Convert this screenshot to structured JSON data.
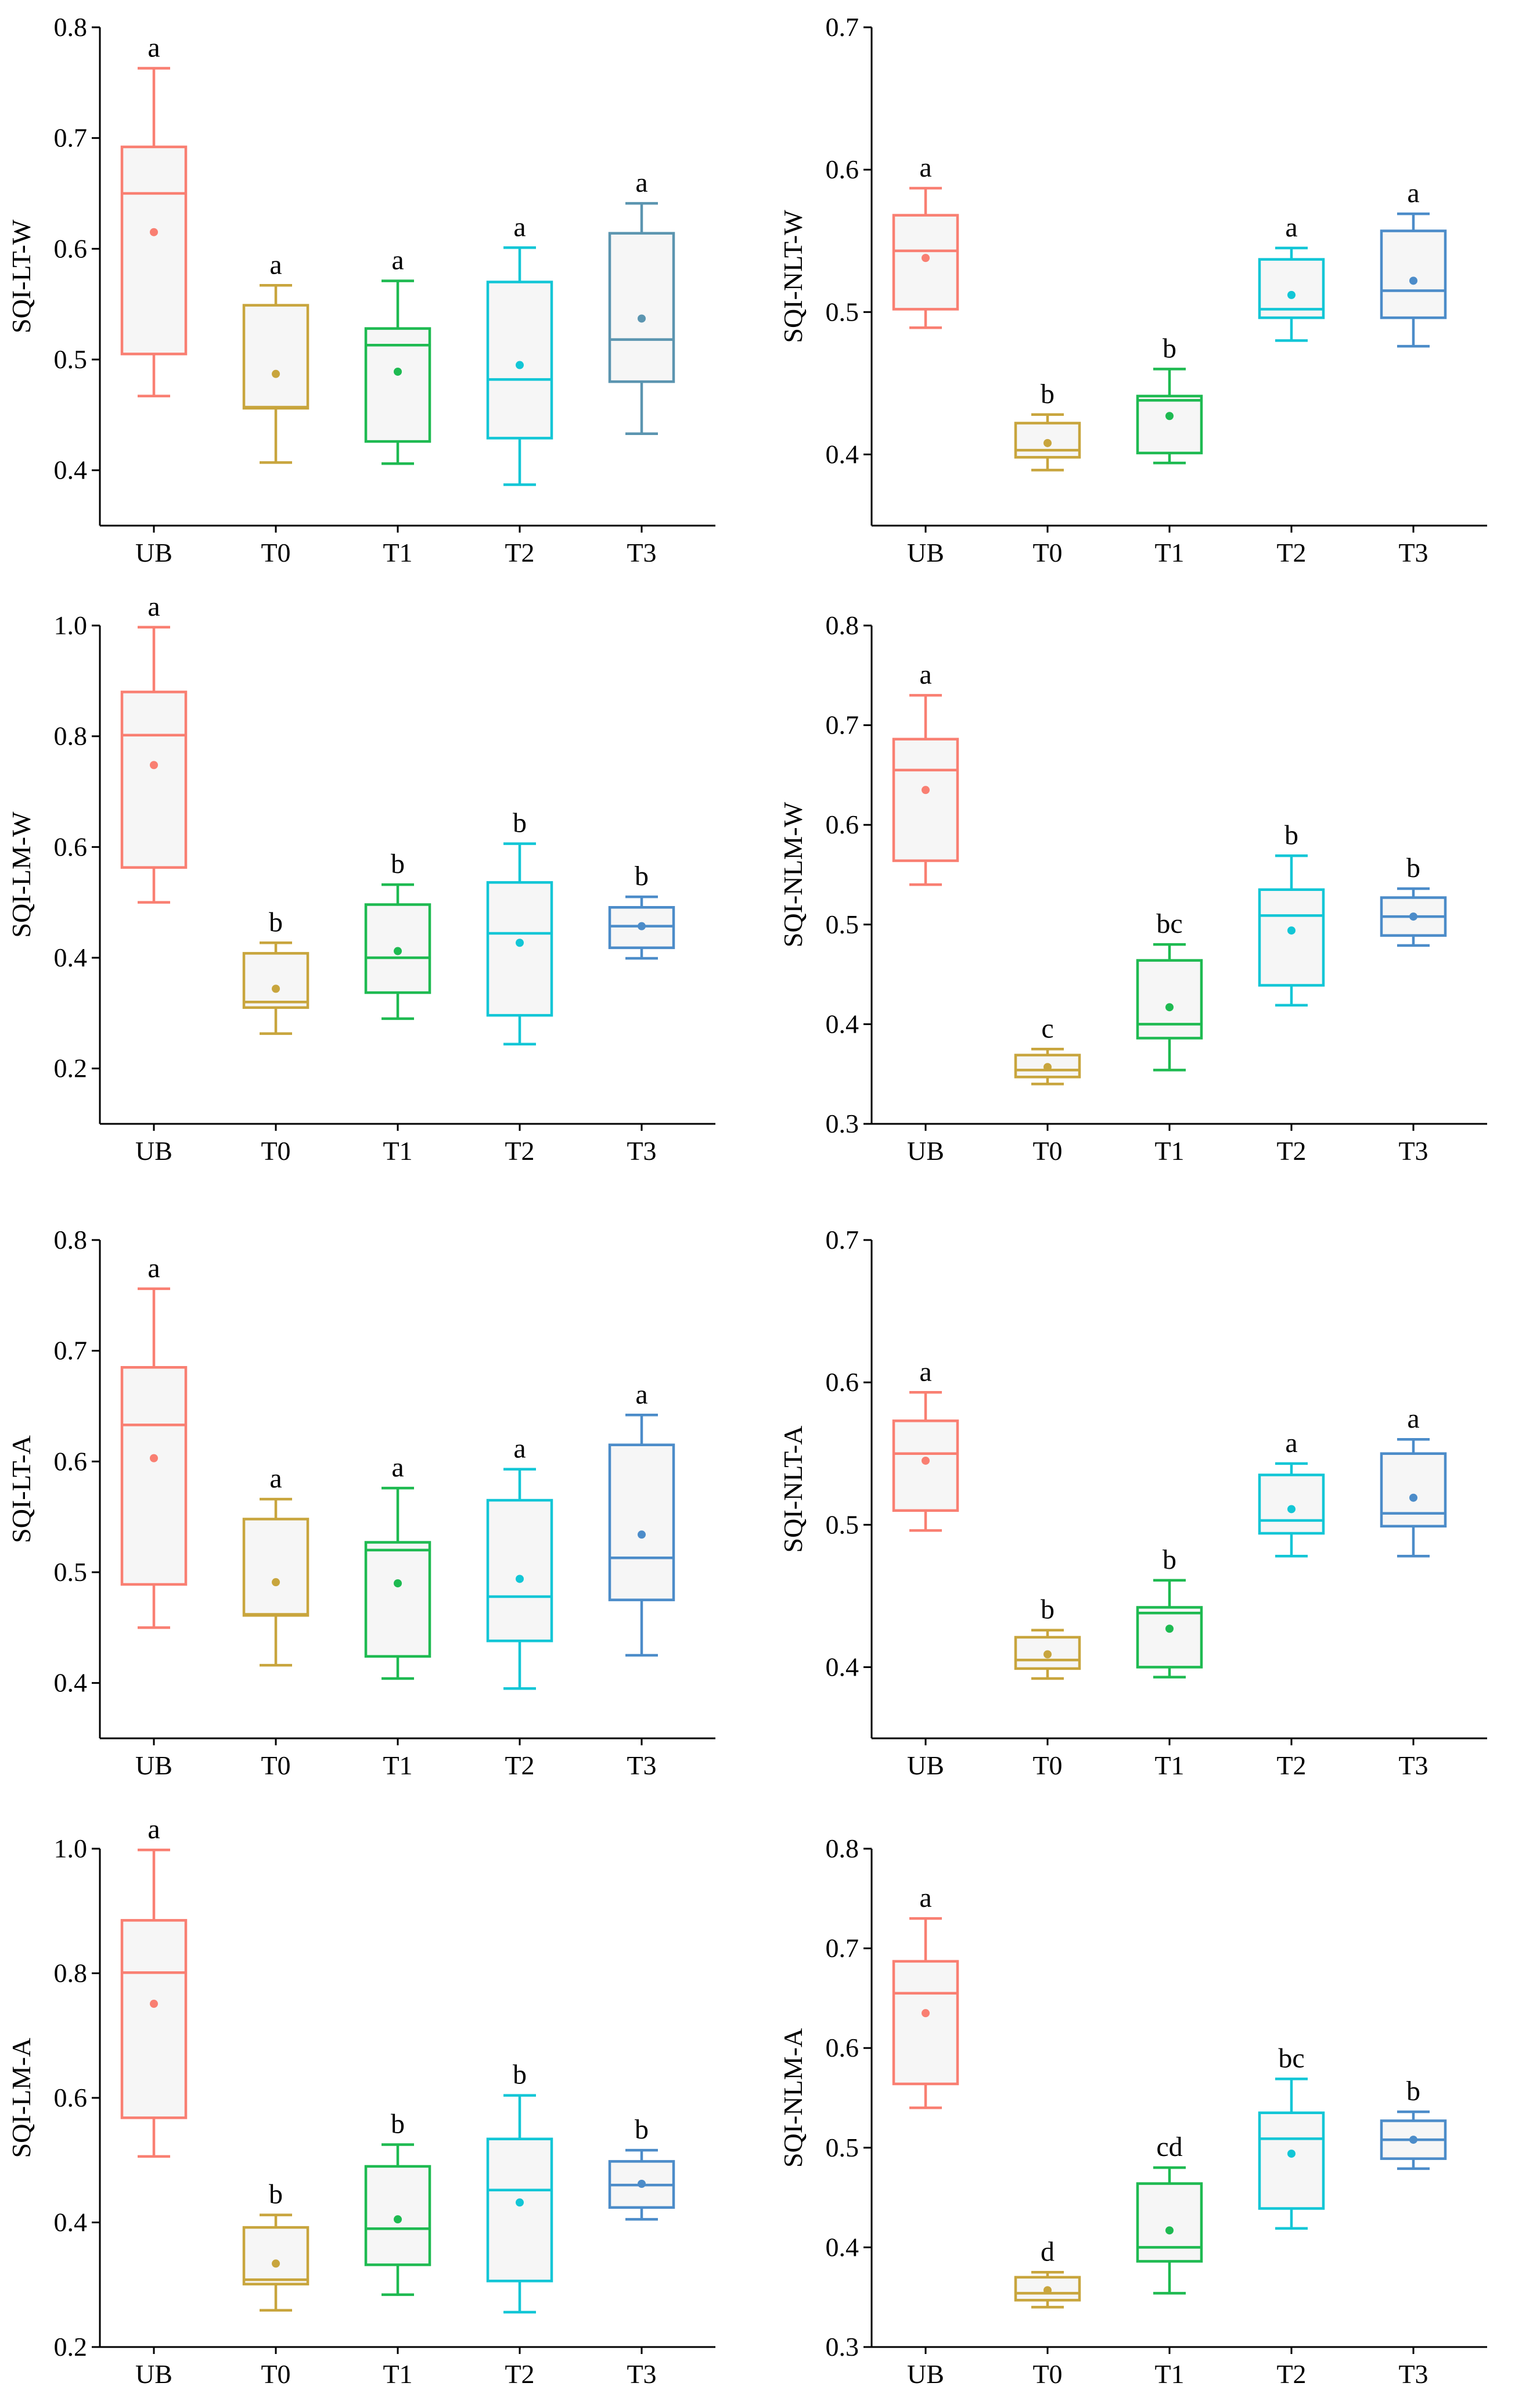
{
  "colors": {
    "UB": "#f97f72",
    "T0": "#c8a53d",
    "T1": "#1eba51",
    "T2": "#12c6d6",
    "T3_default": "#4c8cc9",
    "T3_first": "#5b95b0"
  },
  "chart_data": [
    {
      "type": "box",
      "id": "sqi-lt-w",
      "ylabel": "SQI-LT-W",
      "ylim": [
        0.35,
        0.8
      ],
      "yticks": [
        "0.4",
        "0.5",
        "0.6",
        "0.7",
        "0.8"
      ],
      "categories": [
        "UB",
        "T0",
        "T1",
        "T2",
        "T3"
      ],
      "boxes": [
        {
          "cat": "UB",
          "min": 0.467,
          "q1": 0.505,
          "median": 0.65,
          "q3": 0.692,
          "max": 0.763,
          "mean": 0.615,
          "label": "a"
        },
        {
          "cat": "T0",
          "min": 0.407,
          "q1": 0.456,
          "median": 0.457,
          "q3": 0.549,
          "max": 0.567,
          "mean": 0.487,
          "label": "a"
        },
        {
          "cat": "T1",
          "min": 0.406,
          "q1": 0.426,
          "median": 0.513,
          "q3": 0.528,
          "max": 0.571,
          "mean": 0.489,
          "label": "a"
        },
        {
          "cat": "T2",
          "min": 0.387,
          "q1": 0.429,
          "median": 0.482,
          "q3": 0.57,
          "max": 0.601,
          "mean": 0.495,
          "label": "a"
        },
        {
          "cat": "T3",
          "min": 0.433,
          "q1": 0.48,
          "median": 0.518,
          "q3": 0.614,
          "max": 0.641,
          "mean": 0.537,
          "label": "a"
        }
      ]
    },
    {
      "type": "box",
      "id": "sqi-nlt-w",
      "ylabel": "SQI-NLT-W",
      "ylim": [
        0.35,
        0.7
      ],
      "yticks": [
        "0.4",
        "0.5",
        "0.6",
        "0.7"
      ],
      "categories": [
        "UB",
        "T0",
        "T1",
        "T2",
        "T3"
      ],
      "boxes": [
        {
          "cat": "UB",
          "min": 0.489,
          "q1": 0.502,
          "median": 0.543,
          "q3": 0.568,
          "max": 0.587,
          "mean": 0.538,
          "label": "a"
        },
        {
          "cat": "T0",
          "min": 0.389,
          "q1": 0.398,
          "median": 0.403,
          "q3": 0.422,
          "max": 0.428,
          "mean": 0.408,
          "label": "b"
        },
        {
          "cat": "T1",
          "min": 0.394,
          "q1": 0.401,
          "median": 0.438,
          "q3": 0.441,
          "max": 0.46,
          "mean": 0.427,
          "label": "b"
        },
        {
          "cat": "T2",
          "min": 0.48,
          "q1": 0.496,
          "median": 0.502,
          "q3": 0.537,
          "max": 0.545,
          "mean": 0.512,
          "label": "a"
        },
        {
          "cat": "T3",
          "min": 0.476,
          "q1": 0.496,
          "median": 0.515,
          "q3": 0.557,
          "max": 0.569,
          "mean": 0.522,
          "label": "a"
        }
      ]
    },
    {
      "type": "box",
      "id": "sqi-lm-w",
      "ylabel": "SQI-LM-W",
      "ylim": [
        0.1,
        1.0
      ],
      "yticks": [
        "0.2",
        "0.4",
        "0.6",
        "0.8",
        "1.0"
      ],
      "categories": [
        "UB",
        "T0",
        "T1",
        "T2",
        "T3"
      ],
      "boxes": [
        {
          "cat": "UB",
          "min": 0.5,
          "q1": 0.563,
          "median": 0.802,
          "q3": 0.88,
          "max": 0.997,
          "mean": 0.748,
          "label": "a"
        },
        {
          "cat": "T0",
          "min": 0.263,
          "q1": 0.31,
          "median": 0.32,
          "q3": 0.408,
          "max": 0.427,
          "mean": 0.344,
          "label": "b"
        },
        {
          "cat": "T1",
          "min": 0.29,
          "q1": 0.337,
          "median": 0.4,
          "q3": 0.496,
          "max": 0.532,
          "mean": 0.412,
          "label": "b"
        },
        {
          "cat": "T2",
          "min": 0.244,
          "q1": 0.296,
          "median": 0.444,
          "q3": 0.536,
          "max": 0.606,
          "mean": 0.427,
          "label": "b"
        },
        {
          "cat": "T3",
          "min": 0.399,
          "q1": 0.418,
          "median": 0.457,
          "q3": 0.491,
          "max": 0.51,
          "mean": 0.457,
          "label": "b"
        }
      ]
    },
    {
      "type": "box",
      "id": "sqi-nlm-w",
      "ylabel": "SQI-NLM-W",
      "ylim": [
        0.3,
        0.8
      ],
      "yticks": [
        "0.3",
        "0.4",
        "0.5",
        "0.6",
        "0.7",
        "0.8"
      ],
      "categories": [
        "UB",
        "T0",
        "T1",
        "T2",
        "T3"
      ],
      "boxes": [
        {
          "cat": "UB",
          "min": 0.54,
          "q1": 0.564,
          "median": 0.655,
          "q3": 0.686,
          "max": 0.73,
          "mean": 0.635,
          "label": "a"
        },
        {
          "cat": "T0",
          "min": 0.34,
          "q1": 0.347,
          "median": 0.354,
          "q3": 0.369,
          "max": 0.375,
          "mean": 0.357,
          "label": "c"
        },
        {
          "cat": "T1",
          "min": 0.354,
          "q1": 0.386,
          "median": 0.4,
          "q3": 0.464,
          "max": 0.48,
          "mean": 0.417,
          "label": "bc"
        },
        {
          "cat": "T2",
          "min": 0.419,
          "q1": 0.439,
          "median": 0.509,
          "q3": 0.535,
          "max": 0.569,
          "mean": 0.494,
          "label": "b"
        },
        {
          "cat": "T3",
          "min": 0.479,
          "q1": 0.489,
          "median": 0.508,
          "q3": 0.527,
          "max": 0.536,
          "mean": 0.508,
          "label": "b"
        }
      ]
    },
    {
      "type": "box",
      "id": "sqi-lt-a",
      "ylabel": "SQI-LT-A",
      "ylim": [
        0.35,
        0.8
      ],
      "yticks": [
        "0.4",
        "0.5",
        "0.6",
        "0.7",
        "0.8"
      ],
      "categories": [
        "UB",
        "T0",
        "T1",
        "T2",
        "T3"
      ],
      "boxes": [
        {
          "cat": "UB",
          "min": 0.45,
          "q1": 0.489,
          "median": 0.633,
          "q3": 0.685,
          "max": 0.756,
          "mean": 0.603,
          "label": "a"
        },
        {
          "cat": "T0",
          "min": 0.416,
          "q1": 0.461,
          "median": 0.462,
          "q3": 0.548,
          "max": 0.566,
          "mean": 0.491,
          "label": "a"
        },
        {
          "cat": "T1",
          "min": 0.404,
          "q1": 0.424,
          "median": 0.52,
          "q3": 0.527,
          "max": 0.576,
          "mean": 0.49,
          "label": "a"
        },
        {
          "cat": "T2",
          "min": 0.395,
          "q1": 0.438,
          "median": 0.478,
          "q3": 0.565,
          "max": 0.593,
          "mean": 0.494,
          "label": "a"
        },
        {
          "cat": "T3",
          "min": 0.425,
          "q1": 0.475,
          "median": 0.513,
          "q3": 0.615,
          "max": 0.642,
          "mean": 0.534,
          "label": "a"
        }
      ]
    },
    {
      "type": "box",
      "id": "sqi-nlt-a",
      "ylabel": "SQI-NLT-A",
      "ylim": [
        0.35,
        0.7
      ],
      "yticks": [
        "0.4",
        "0.5",
        "0.6",
        "0.7"
      ],
      "categories": [
        "UB",
        "T0",
        "T1",
        "T2",
        "T3"
      ],
      "boxes": [
        {
          "cat": "UB",
          "min": 0.496,
          "q1": 0.51,
          "median": 0.55,
          "q3": 0.573,
          "max": 0.593,
          "mean": 0.545,
          "label": "a"
        },
        {
          "cat": "T0",
          "min": 0.392,
          "q1": 0.399,
          "median": 0.405,
          "q3": 0.421,
          "max": 0.426,
          "mean": 0.409,
          "label": "b"
        },
        {
          "cat": "T1",
          "min": 0.393,
          "q1": 0.4,
          "median": 0.438,
          "q3": 0.442,
          "max": 0.461,
          "mean": 0.427,
          "label": "b"
        },
        {
          "cat": "T2",
          "min": 0.478,
          "q1": 0.494,
          "median": 0.503,
          "q3": 0.535,
          "max": 0.543,
          "mean": 0.511,
          "label": "a"
        },
        {
          "cat": "T3",
          "min": 0.478,
          "q1": 0.499,
          "median": 0.508,
          "q3": 0.55,
          "max": 0.56,
          "mean": 0.519,
          "label": "a"
        }
      ]
    },
    {
      "type": "box",
      "id": "sqi-lm-a",
      "ylabel": "SQI-LM-A",
      "ylim": [
        0.2,
        1.0
      ],
      "yticks": [
        "0.2",
        "0.4",
        "0.6",
        "0.8",
        "1.0"
      ],
      "categories": [
        "UB",
        "T0",
        "T1",
        "T2",
        "T3"
      ],
      "boxes": [
        {
          "cat": "UB",
          "min": 0.506,
          "q1": 0.568,
          "median": 0.801,
          "q3": 0.885,
          "max": 0.998,
          "mean": 0.751,
          "label": "a"
        },
        {
          "cat": "T0",
          "min": 0.259,
          "q1": 0.301,
          "median": 0.308,
          "q3": 0.392,
          "max": 0.412,
          "mean": 0.334,
          "label": "b"
        },
        {
          "cat": "T1",
          "min": 0.284,
          "q1": 0.332,
          "median": 0.39,
          "q3": 0.49,
          "max": 0.525,
          "mean": 0.405,
          "label": "b"
        },
        {
          "cat": "T2",
          "min": 0.256,
          "q1": 0.306,
          "median": 0.452,
          "q3": 0.534,
          "max": 0.604,
          "mean": 0.432,
          "label": "b"
        },
        {
          "cat": "T3",
          "min": 0.405,
          "q1": 0.424,
          "median": 0.46,
          "q3": 0.498,
          "max": 0.516,
          "mean": 0.462,
          "label": "b"
        }
      ]
    },
    {
      "type": "box",
      "id": "sqi-nlm-a",
      "ylabel": "SQI-NLM-A",
      "ylim": [
        0.3,
        0.8
      ],
      "yticks": [
        "0.3",
        "0.4",
        "0.5",
        "0.6",
        "0.7",
        "0.8"
      ],
      "categories": [
        "UB",
        "T0",
        "T1",
        "T2",
        "T3"
      ],
      "boxes": [
        {
          "cat": "UB",
          "min": 0.54,
          "q1": 0.564,
          "median": 0.655,
          "q3": 0.687,
          "max": 0.73,
          "mean": 0.635,
          "label": "a"
        },
        {
          "cat": "T0",
          "min": 0.34,
          "q1": 0.347,
          "median": 0.354,
          "q3": 0.37,
          "max": 0.375,
          "mean": 0.357,
          "label": "d"
        },
        {
          "cat": "T1",
          "min": 0.354,
          "q1": 0.386,
          "median": 0.4,
          "q3": 0.464,
          "max": 0.48,
          "mean": 0.417,
          "label": "cd"
        },
        {
          "cat": "T2",
          "min": 0.419,
          "q1": 0.439,
          "median": 0.509,
          "q3": 0.535,
          "max": 0.569,
          "mean": 0.494,
          "label": "bc"
        },
        {
          "cat": "T3",
          "min": 0.479,
          "q1": 0.489,
          "median": 0.508,
          "q3": 0.527,
          "max": 0.536,
          "mean": 0.508,
          "label": "b"
        }
      ]
    }
  ]
}
